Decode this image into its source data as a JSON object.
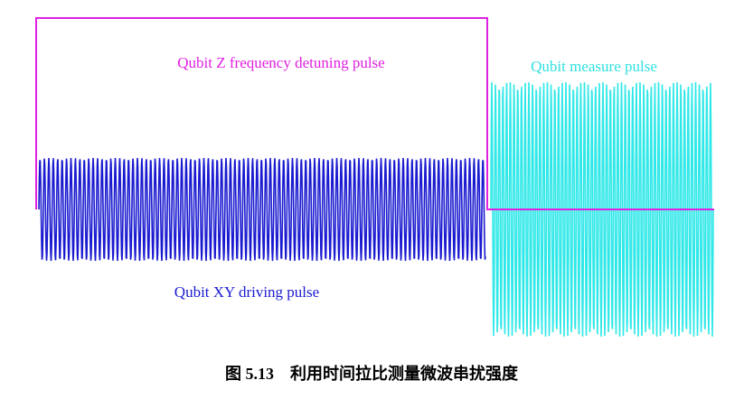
{
  "labels": {
    "z_pulse": "Qubit Z frequency detuning pulse",
    "measure_pulse": "Qubit measure pulse",
    "xy_pulse": "Qubit XY driving pulse"
  },
  "caption": "图 5.13　利用时间拉比测量微波串扰强度"
}
